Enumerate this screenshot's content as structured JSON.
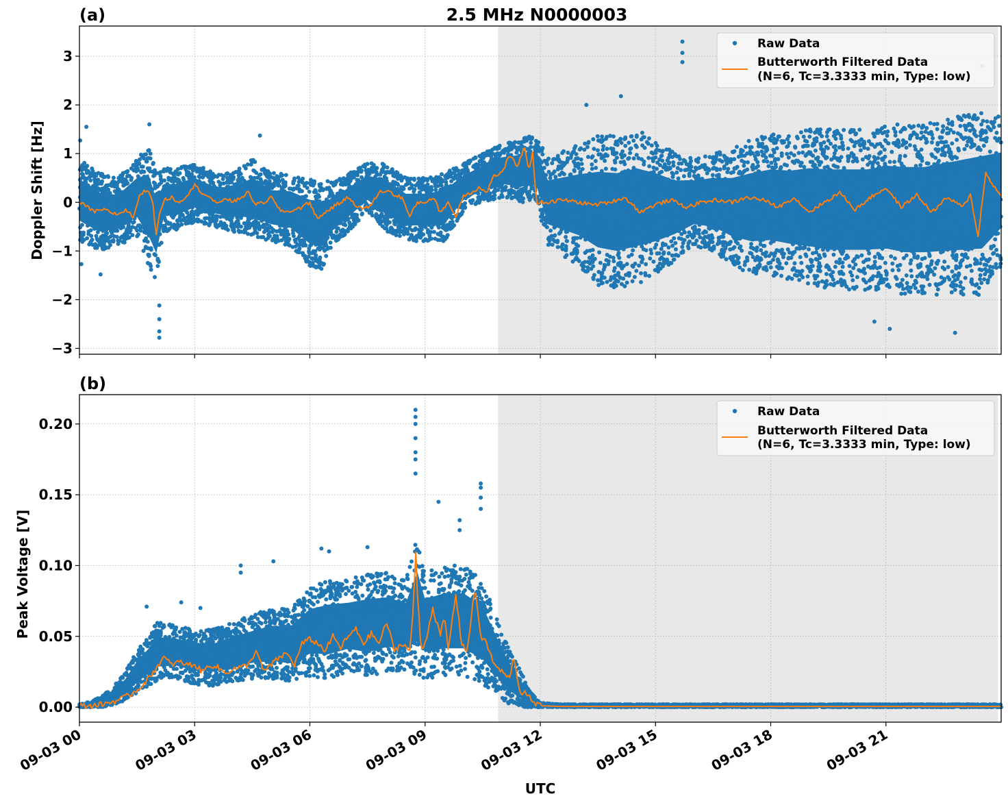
{
  "figure_title": "2.5 MHz N0000003",
  "shared_x": {
    "label": "UTC",
    "unit": "hours since 09-03 00:00 UTC",
    "range": [
      0,
      24
    ],
    "ticks": [
      0,
      3,
      6,
      9,
      12,
      15,
      18,
      21
    ],
    "tick_labels": [
      "09-03 00",
      "09-03 03",
      "09-03 06",
      "09-03 09",
      "09-03 12",
      "09-03 15",
      "09-03 18",
      "09-03 21"
    ]
  },
  "shaded_region": {
    "start_hour": 10.9,
    "end_hour": 23.92,
    "color": "#e8e8e8",
    "meaning": "night-time / shaded span"
  },
  "legend": {
    "placement": "top-right",
    "raw_label": "Raw Data",
    "filtered_label_line1": "Butterworth Filtered Data",
    "filtered_label_line2": "(N=6, Tc=3.3333 min, Type: low)"
  },
  "colors": {
    "raw": "#1f77b4",
    "filtered": "#ff7f0e",
    "grid": "#b0b0b0",
    "shade": "#e8e8e8"
  },
  "chart_data": [
    {
      "panel_label": "(a)",
      "type": "scatter",
      "title": "2.5 MHz N0000003",
      "xlabel": "",
      "ylabel": "Doppler Shift [Hz]",
      "ylim": [
        -3.12,
        3.62
      ],
      "yticks": [
        -3,
        -2,
        -1,
        0,
        1,
        2,
        3
      ],
      "ytick_labels": [
        "−3",
        "−2",
        "−1",
        "0",
        "1",
        "2",
        "3"
      ],
      "grid": true,
      "series": [
        {
          "name": "Raw Data",
          "kind": "scatter",
          "envelope_x": [
            0,
            0.5,
            1,
            1.5,
            1.8,
            2.0,
            2.2,
            2.5,
            3,
            3.5,
            4,
            4.5,
            5,
            5.5,
            6,
            6.3,
            6.6,
            7,
            7.5,
            8,
            8.5,
            9,
            9.5,
            10,
            10.5,
            11,
            11.5,
            11.9,
            12.2,
            13,
            13.5,
            14,
            14.5,
            15,
            15.5,
            16,
            16.5,
            17,
            17.5,
            18,
            18.5,
            19,
            19.5,
            20,
            20.5,
            21,
            21.5,
            22,
            22.5,
            23,
            23.5,
            24
          ],
          "upper": [
            0.9,
            0.6,
            0.5,
            0.9,
            1.2,
            0.6,
            0.7,
            0.7,
            0.8,
            0.6,
            0.6,
            0.9,
            0.6,
            0.6,
            0.5,
            0.5,
            0.4,
            0.6,
            0.8,
            0.8,
            0.5,
            0.5,
            0.6,
            0.8,
            1.0,
            1.2,
            1.3,
            1.4,
            0.9,
            1.2,
            1.4,
            1.4,
            1.5,
            1.3,
            1.0,
            0.9,
            1.0,
            1.1,
            1.3,
            1.4,
            1.4,
            1.5,
            1.5,
            1.5,
            1.5,
            1.6,
            1.6,
            1.6,
            1.7,
            1.8,
            1.9,
            1.8
          ],
          "lower": [
            -0.8,
            -1.0,
            -0.9,
            -0.7,
            -1.3,
            -1.6,
            -0.6,
            -0.6,
            -0.4,
            -0.5,
            -0.6,
            -0.7,
            -0.8,
            -0.9,
            -1.3,
            -1.4,
            -0.9,
            -0.6,
            -0.2,
            -0.6,
            -0.8,
            -0.8,
            -0.8,
            -0.2,
            0.0,
            0.1,
            0.0,
            0.0,
            -0.9,
            -1.3,
            -1.7,
            -1.8,
            -1.7,
            -1.5,
            -1.2,
            -0.9,
            -1.0,
            -1.3,
            -1.5,
            -1.5,
            -1.6,
            -1.7,
            -1.8,
            -1.8,
            -1.8,
            -1.8,
            -1.9,
            -1.9,
            -1.9,
            -1.9,
            -1.9,
            -1.3
          ],
          "outliers": [
            [
              0.02,
              1.27
            ],
            [
              0.18,
              1.55
            ],
            [
              0.05,
              -1.27
            ],
            [
              0.55,
              -1.48
            ],
            [
              2.08,
              -2.12
            ],
            [
              2.08,
              -2.4
            ],
            [
              2.08,
              -2.65
            ],
            [
              2.08,
              -2.78
            ],
            [
              1.82,
              1.6
            ],
            [
              4.7,
              1.37
            ],
            [
              15.7,
              3.3
            ],
            [
              15.7,
              3.07
            ],
            [
              15.7,
              2.88
            ],
            [
              14.1,
              2.18
            ],
            [
              13.2,
              2.0
            ],
            [
              23.5,
              2.8
            ],
            [
              21.1,
              -2.6
            ],
            [
              22.8,
              -2.68
            ],
            [
              20.7,
              -2.45
            ]
          ]
        },
        {
          "name": "Butterworth Filtered Data (N=6, Tc=3.3333 min, Type: low)",
          "kind": "line",
          "x": [
            0,
            0.2,
            0.4,
            0.6,
            0.8,
            1.0,
            1.2,
            1.4,
            1.6,
            1.8,
            1.9,
            2.0,
            2.1,
            2.2,
            2.4,
            2.6,
            2.8,
            3.0,
            3.2,
            3.4,
            3.6,
            3.8,
            4.0,
            4.2,
            4.4,
            4.6,
            4.8,
            5.0,
            5.2,
            5.4,
            5.6,
            5.8,
            6.0,
            6.2,
            6.4,
            6.6,
            6.8,
            7.0,
            7.2,
            7.4,
            7.6,
            7.8,
            8.0,
            8.2,
            8.4,
            8.6,
            8.8,
            9.0,
            9.2,
            9.4,
            9.6,
            9.8,
            10.0,
            10.2,
            10.4,
            10.6,
            10.8,
            11.0,
            11.2,
            11.4,
            11.6,
            11.7,
            11.8,
            11.9,
            12.2,
            12.6,
            13.0,
            13.4,
            13.8,
            14.2,
            14.6,
            15.0,
            15.4,
            15.8,
            16.2,
            16.6,
            17.0,
            17.4,
            17.8,
            18.2,
            18.6,
            19.0,
            19.4,
            19.8,
            20.2,
            20.6,
            21.0,
            21.4,
            21.8,
            22.2,
            22.6,
            22.8,
            23.0,
            23.2,
            23.4,
            23.6,
            23.8,
            24.0
          ],
          "y": [
            0.0,
            -0.1,
            -0.2,
            -0.15,
            -0.2,
            -0.25,
            -0.15,
            -0.3,
            0.2,
            0.25,
            0.05,
            -0.65,
            -0.2,
            0.05,
            0.1,
            0.0,
            0.15,
            0.35,
            0.2,
            0.1,
            -0.05,
            0.1,
            0.0,
            0.1,
            0.2,
            -0.05,
            0.0,
            0.1,
            -0.15,
            -0.2,
            -0.15,
            -0.1,
            0.0,
            -0.35,
            -0.2,
            -0.1,
            0.0,
            0.1,
            -0.05,
            -0.15,
            -0.05,
            0.2,
            0.25,
            0.15,
            0.1,
            -0.3,
            0.0,
            0.0,
            0.1,
            -0.2,
            0.0,
            -0.3,
            0.15,
            0.2,
            0.3,
            0.2,
            0.55,
            0.6,
            0.95,
            0.75,
            1.15,
            0.6,
            1.05,
            0.0,
            0.0,
            0.05,
            0.0,
            -0.05,
            0.0,
            0.1,
            -0.2,
            -0.05,
            0.05,
            -0.1,
            0.0,
            0.05,
            0.0,
            0.1,
            0.05,
            -0.1,
            0.1,
            -0.2,
            0.0,
            0.2,
            -0.15,
            0.1,
            0.3,
            -0.1,
            0.15,
            -0.2,
            0.1,
            0.0,
            -0.1,
            0.15,
            -0.7,
            0.6,
            0.35,
            0.1
          ]
        }
      ]
    },
    {
      "panel_label": "(b)",
      "type": "scatter",
      "title": "",
      "xlabel": "UTC",
      "ylabel": "Peak Voltage [V]",
      "ylim": [
        -0.0106,
        0.2207
      ],
      "yticks": [
        0.0,
        0.05,
        0.1,
        0.15,
        0.2
      ],
      "ytick_labels": [
        "0.00",
        "0.05",
        "0.10",
        "0.15",
        "0.20"
      ],
      "grid": true,
      "series": [
        {
          "name": "Raw Data",
          "kind": "scatter",
          "envelope_x": [
            0,
            0.3,
            0.6,
            0.9,
            1.2,
            1.5,
            1.8,
            2.0,
            2.5,
            3.0,
            3.5,
            4.0,
            4.5,
            5.0,
            5.5,
            6.0,
            6.5,
            7.0,
            7.5,
            8.0,
            8.5,
            8.8,
            9.0,
            9.5,
            10.0,
            10.5,
            10.9,
            11.2,
            11.5,
            11.7,
            12.0,
            12.5,
            24.0
          ],
          "upper": [
            0.002,
            0.004,
            0.008,
            0.015,
            0.025,
            0.04,
            0.05,
            0.06,
            0.058,
            0.055,
            0.055,
            0.06,
            0.065,
            0.07,
            0.07,
            0.085,
            0.09,
            0.09,
            0.095,
            0.095,
            0.09,
            0.12,
            0.095,
            0.1,
            0.1,
            0.09,
            0.06,
            0.04,
            0.025,
            0.012,
            0.003,
            0.002,
            0.002
          ],
          "lower": [
            0.0,
            0.0,
            0.0,
            0.002,
            0.005,
            0.01,
            0.015,
            0.018,
            0.02,
            0.016,
            0.015,
            0.018,
            0.02,
            0.02,
            0.018,
            0.022,
            0.02,
            0.025,
            0.02,
            0.025,
            0.025,
            0.022,
            0.02,
            0.022,
            0.022,
            0.015,
            0.008,
            0.002,
            0.0,
            0.0,
            0.0,
            0.0,
            0.0
          ],
          "outliers": [
            [
              8.75,
              0.21
            ],
            [
              8.75,
              0.205
            ],
            [
              8.75,
              0.2
            ],
            [
              8.75,
              0.19
            ],
            [
              8.75,
              0.18
            ],
            [
              8.75,
              0.175
            ],
            [
              8.75,
              0.165
            ],
            [
              10.45,
              0.158
            ],
            [
              10.45,
              0.155
            ],
            [
              10.45,
              0.148
            ],
            [
              9.35,
              0.145
            ],
            [
              4.2,
              0.1
            ],
            [
              4.2,
              0.095
            ],
            [
              5.05,
              0.103
            ],
            [
              6.3,
              0.112
            ],
            [
              6.5,
              0.11
            ],
            [
              7.5,
              0.113
            ],
            [
              9.9,
              0.132
            ],
            [
              9.9,
              0.125
            ],
            [
              10.45,
              0.14
            ],
            [
              3.15,
              0.07
            ],
            [
              1.75,
              0.071
            ],
            [
              2.65,
              0.074
            ],
            [
              11.45,
              0.02
            ],
            [
              11.5,
              0.015
            ]
          ]
        },
        {
          "name": "Butterworth Filtered Data (N=6, Tc=3.3333 min, Type: low)",
          "kind": "line",
          "x": [
            0,
            0.3,
            0.6,
            0.9,
            1.2,
            1.5,
            1.8,
            2.0,
            2.2,
            2.4,
            2.6,
            2.8,
            3.0,
            3.2,
            3.4,
            3.6,
            3.8,
            4.0,
            4.2,
            4.4,
            4.6,
            4.8,
            5.0,
            5.2,
            5.4,
            5.6,
            5.8,
            6.0,
            6.2,
            6.4,
            6.6,
            6.8,
            7.0,
            7.2,
            7.4,
            7.6,
            7.8,
            8.0,
            8.2,
            8.4,
            8.6,
            8.7,
            8.75,
            8.8,
            8.9,
            9.0,
            9.2,
            9.4,
            9.5,
            9.6,
            9.8,
            9.95,
            10.1,
            10.3,
            10.45,
            10.6,
            10.8,
            11.0,
            11.2,
            11.3,
            11.5,
            11.6,
            11.8,
            12.0,
            12.5,
            13.0,
            24.0
          ],
          "y": [
            0.001,
            0.001,
            0.002,
            0.004,
            0.007,
            0.012,
            0.02,
            0.028,
            0.035,
            0.03,
            0.032,
            0.03,
            0.03,
            0.025,
            0.03,
            0.028,
            0.024,
            0.027,
            0.028,
            0.03,
            0.04,
            0.025,
            0.03,
            0.035,
            0.038,
            0.03,
            0.045,
            0.048,
            0.045,
            0.04,
            0.05,
            0.042,
            0.05,
            0.055,
            0.045,
            0.052,
            0.045,
            0.06,
            0.04,
            0.045,
            0.04,
            0.07,
            0.115,
            0.08,
            0.04,
            0.045,
            0.07,
            0.05,
            0.065,
            0.04,
            0.08,
            0.045,
            0.04,
            0.085,
            0.05,
            0.045,
            0.03,
            0.025,
            0.02,
            0.035,
            0.008,
            0.012,
            0.003,
            0.001,
            0.0005,
            0.0005,
            0.0005
          ]
        }
      ]
    }
  ]
}
